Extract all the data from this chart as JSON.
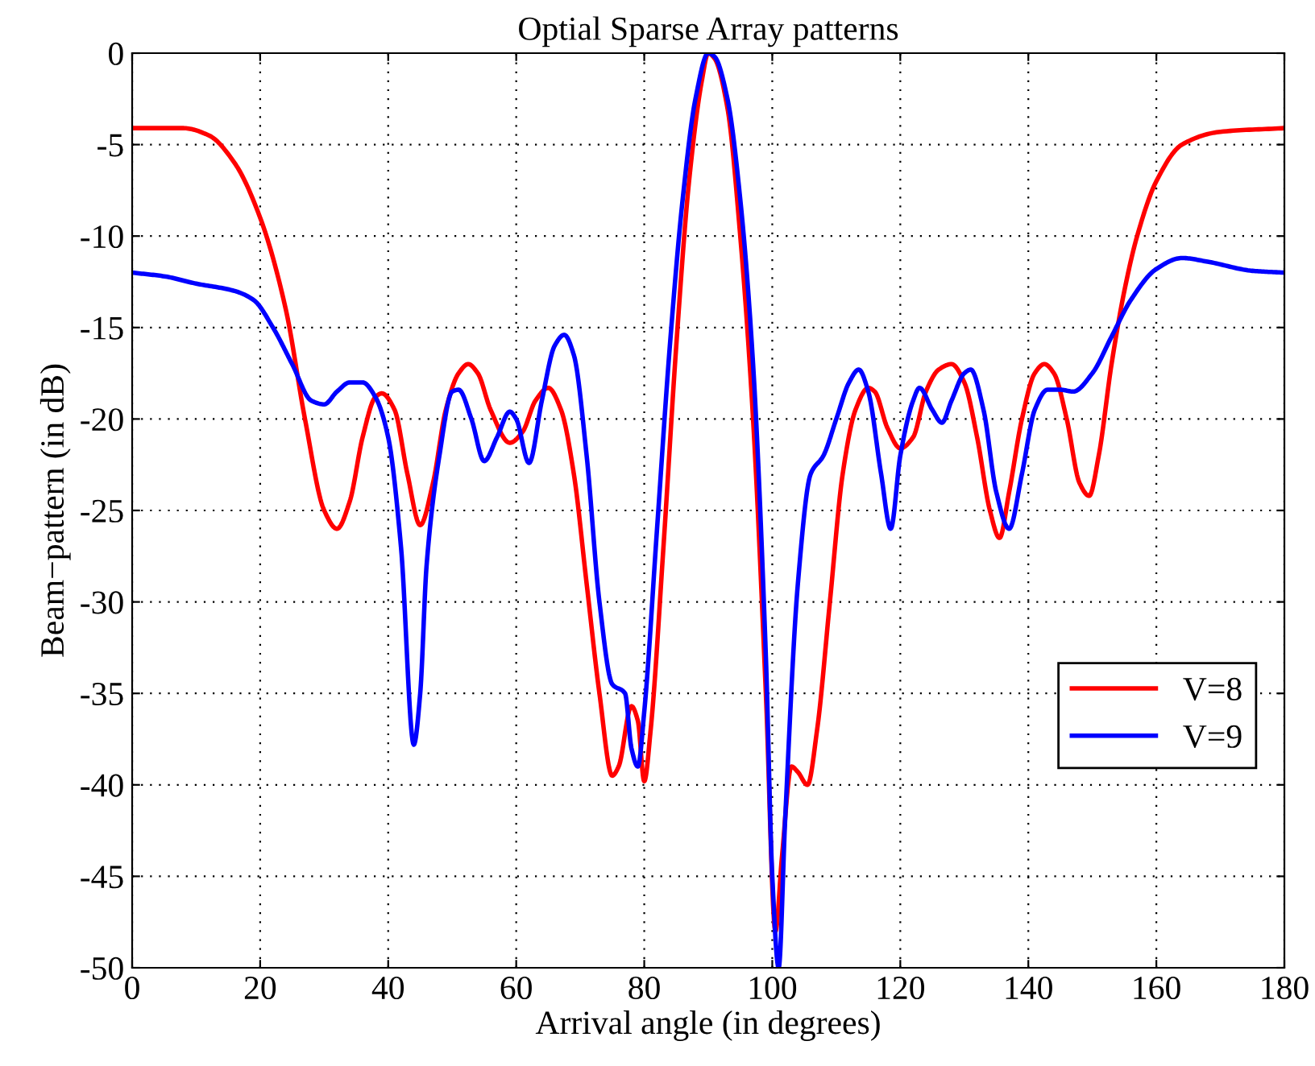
{
  "chart_data": {
    "type": "line",
    "title": "Optial Sparse Array patterns",
    "xlabel": "Arrival angle (in degrees)",
    "ylabel": "Beam−pattern (in dB)",
    "xlim": [
      0,
      180
    ],
    "xticks": [
      0,
      20,
      40,
      60,
      80,
      100,
      120,
      140,
      160,
      180
    ],
    "ylim": [
      -50,
      0
    ],
    "yticks": [
      -50,
      -45,
      -40,
      -35,
      -30,
      -25,
      -20,
      -15,
      -10,
      -5,
      0
    ],
    "grid": true,
    "legend": "bottom right",
    "line_style": "solid",
    "marker": "none",
    "series": [
      {
        "name": "V=8",
        "color": "#ff0000",
        "x": [
          0,
          8,
          12,
          16,
          20,
          24,
          27,
          30,
          32,
          34,
          36,
          38,
          39,
          41,
          43,
          45,
          47,
          49,
          51,
          52.5,
          54,
          56,
          59,
          61,
          63,
          65,
          67,
          69,
          71,
          73,
          75,
          76,
          78,
          79,
          80,
          81,
          83,
          85,
          87,
          89,
          90,
          91,
          93,
          95,
          97,
          99,
          100.5,
          101.5,
          103,
          104,
          105.5,
          107,
          109,
          111,
          113,
          115,
          116,
          118,
          120,
          122,
          124,
          126,
          128,
          130,
          132,
          134,
          135.5,
          137,
          139,
          141,
          142.5,
          144,
          146,
          148,
          149.5,
          151,
          153,
          155,
          157,
          160,
          164,
          170,
          180
        ],
        "values": [
          -4.1,
          -4.1,
          -4.5,
          -6,
          -9,
          -14,
          -20,
          -25,
          -26,
          -24.5,
          -21,
          -18.8,
          -18.6,
          -19.5,
          -23,
          -25.8,
          -23.5,
          -19.5,
          -17.5,
          -17,
          -17.5,
          -19.5,
          -21.3,
          -20.7,
          -19,
          -18.3,
          -19.5,
          -23,
          -29,
          -35,
          -39.5,
          -39,
          -35.7,
          -36.5,
          -39.8,
          -37,
          -27,
          -16,
          -7,
          -1.5,
          0,
          -0.3,
          -3,
          -10,
          -20,
          -35,
          -48,
          -44,
          -39,
          -39.3,
          -40,
          -37,
          -30,
          -23,
          -19.5,
          -18.3,
          -18.5,
          -20.5,
          -21.6,
          -21,
          -18.5,
          -17.3,
          -17,
          -18,
          -21,
          -25,
          -26.5,
          -24,
          -20,
          -17.5,
          -17,
          -17.5,
          -20,
          -23.5,
          -24.2,
          -22,
          -17,
          -13,
          -10,
          -7,
          -5,
          -4.3,
          -4.1
        ]
      },
      {
        "name": "V=9",
        "color": "#0000ff",
        "x": [
          0,
          5,
          10,
          16,
          19,
          22,
          25,
          28,
          30,
          32,
          34,
          36,
          38,
          40,
          42,
          44,
          45,
          46,
          48,
          50,
          51,
          53,
          55,
          57,
          59,
          60,
          62,
          64,
          66,
          67.5,
          69,
          71,
          73,
          75,
          77,
          78,
          79,
          80,
          82,
          84,
          86,
          88,
          90,
          91,
          93,
          95,
          97,
          99,
          100,
          101,
          102,
          104,
          106,
          108,
          110,
          112,
          113.5,
          115,
          117,
          118.5,
          120,
          122,
          123,
          125,
          126.5,
          128,
          130,
          131,
          133,
          135,
          137,
          139,
          141,
          143,
          145,
          147,
          150,
          153,
          156,
          160,
          164,
          168,
          175,
          180
        ],
        "values": [
          -12,
          -12.2,
          -12.6,
          -13,
          -13.5,
          -15,
          -17,
          -19,
          -19.2,
          -18.5,
          -18,
          -18,
          -18.8,
          -21,
          -27,
          -37.8,
          -35,
          -28,
          -22,
          -18.5,
          -18.4,
          -20,
          -22.3,
          -21,
          -19.6,
          -20,
          -22.4,
          -19,
          -16,
          -15.4,
          -16.5,
          -22,
          -30,
          -34.5,
          -35,
          -38,
          -39,
          -36,
          -26,
          -16,
          -8,
          -2.5,
          0,
          -0.2,
          -2.5,
          -8,
          -17,
          -33,
          -45,
          -50,
          -42,
          -29,
          -23,
          -22,
          -20,
          -18,
          -17.3,
          -18.5,
          -23,
          -26,
          -22,
          -19,
          -18.3,
          -19.5,
          -20.2,
          -19,
          -17.5,
          -17.3,
          -19.5,
          -24,
          -26,
          -23,
          -19.5,
          -18.4,
          -18.4,
          -18.5,
          -17.5,
          -15.5,
          -13.5,
          -11.8,
          -11.2,
          -11.4,
          -11.9,
          -12
        ]
      }
    ]
  }
}
